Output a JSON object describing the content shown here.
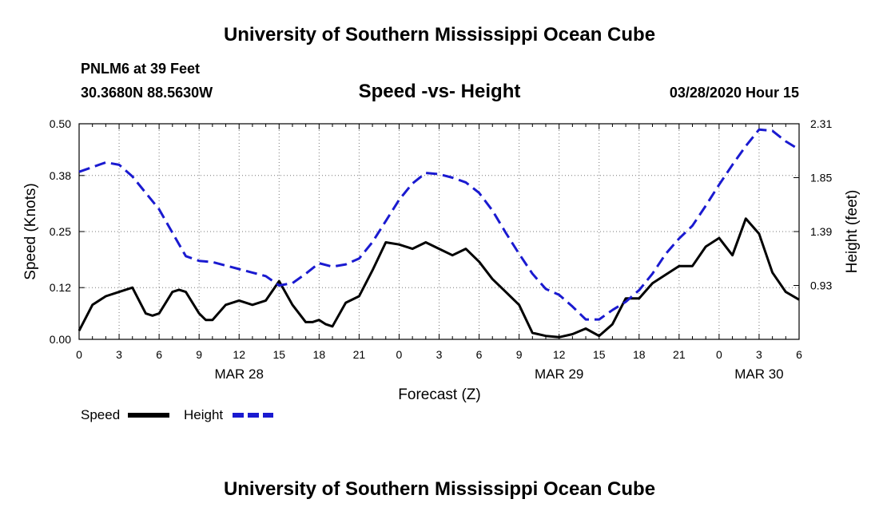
{
  "header": {
    "top_title": "University of Southern Mississippi Ocean Cube",
    "station": "PNLM6 at 39 Feet",
    "coords": "30.3680N 88.5630W",
    "chart_title": "Speed -vs- Height",
    "datetime": "03/28/2020 Hour 15",
    "bottom_title": "University of Southern Mississippi Ocean Cube"
  },
  "colors": {
    "speed": "#000000",
    "height": "#1a1ad0"
  },
  "chart_data": {
    "type": "line",
    "title": "Speed -vs- Height",
    "xlabel": "Forecast (Z)",
    "ylabel_left": "Speed (Knots)",
    "ylabel_right": "Height (feet)",
    "x_range": [
      0,
      54
    ],
    "ylim_left": [
      0,
      0.5
    ],
    "ylim_right": [
      0.47,
      2.31
    ],
    "x_ticks": [
      0,
      3,
      6,
      9,
      12,
      15,
      18,
      21,
      24,
      27,
      30,
      33,
      36,
      39,
      42,
      45,
      48,
      51,
      54
    ],
    "x_tick_labels": [
      "0",
      "3",
      "6",
      "9",
      "12",
      "15",
      "18",
      "21",
      "0",
      "3",
      "6",
      "9",
      "12",
      "15",
      "18",
      "21",
      "0",
      "3",
      "6"
    ],
    "date_labels": [
      {
        "x": 12,
        "label": "MAR 28"
      },
      {
        "x": 36,
        "label": "MAR 29"
      },
      {
        "x": 51,
        "label": "MAR 30"
      }
    ],
    "y_ticks_left": [
      0.0,
      0.12,
      0.25,
      0.38,
      0.5
    ],
    "y_tick_labels_left": [
      "0.00",
      "0.12",
      "0.25",
      "0.38",
      "0.50"
    ],
    "y_ticks_right": [
      0.93,
      1.39,
      1.85,
      2.31
    ],
    "y_tick_labels_right": [
      "0.93",
      "1.39",
      "1.85",
      "2.31"
    ],
    "grid": true,
    "legend": [
      "Speed",
      "Height"
    ],
    "series": [
      {
        "name": "Speed",
        "axis": "left",
        "style": "solid",
        "x": [
          0,
          1,
          2,
          3,
          4,
          5,
          5.5,
          6,
          7,
          7.5,
          8,
          9,
          9.5,
          10,
          11,
          12,
          13,
          14,
          15,
          16,
          17,
          17.5,
          18,
          18.5,
          19,
          20,
          21,
          22,
          23,
          24,
          25,
          26,
          27,
          28,
          29,
          30,
          31,
          32,
          33,
          34,
          35,
          36,
          37,
          38,
          39,
          40,
          41,
          42,
          43,
          44,
          45,
          46,
          47,
          48,
          49,
          50,
          51,
          52,
          53,
          54
        ],
        "values": [
          0.02,
          0.08,
          0.1,
          0.11,
          0.12,
          0.06,
          0.055,
          0.06,
          0.11,
          0.115,
          0.11,
          0.06,
          0.045,
          0.045,
          0.08,
          0.09,
          0.08,
          0.09,
          0.135,
          0.08,
          0.04,
          0.04,
          0.045,
          0.035,
          0.03,
          0.085,
          0.1,
          0.16,
          0.225,
          0.22,
          0.21,
          0.225,
          0.21,
          0.195,
          0.21,
          0.18,
          0.14,
          0.11,
          0.08,
          0.015,
          0.008,
          0.005,
          0.012,
          0.025,
          0.008,
          0.035,
          0.095,
          0.095,
          0.13,
          0.15,
          0.17,
          0.17,
          0.215,
          0.235,
          0.195,
          0.28,
          0.245,
          0.155,
          0.11,
          0.092
        ]
      },
      {
        "name": "Height",
        "axis": "right",
        "style": "dashed",
        "x": [
          0,
          1,
          2,
          3,
          4,
          5,
          6,
          7,
          8,
          9,
          10,
          11,
          12,
          13,
          14,
          15,
          16,
          17,
          18,
          19,
          20,
          21,
          22,
          23,
          24,
          25,
          26,
          27,
          28,
          29,
          30,
          31,
          32,
          33,
          34,
          35,
          36,
          37,
          38,
          39,
          40,
          41,
          42,
          43,
          44,
          45,
          46,
          47,
          48,
          49,
          50,
          51,
          52,
          53,
          54
        ],
        "values": [
          1.9,
          1.94,
          1.98,
          1.96,
          1.86,
          1.72,
          1.58,
          1.38,
          1.18,
          1.14,
          1.13,
          1.1,
          1.07,
          1.04,
          1.01,
          0.93,
          0.95,
          1.03,
          1.12,
          1.09,
          1.11,
          1.16,
          1.3,
          1.48,
          1.66,
          1.8,
          1.89,
          1.88,
          1.85,
          1.81,
          1.72,
          1.57,
          1.38,
          1.2,
          1.03,
          0.9,
          0.85,
          0.75,
          0.64,
          0.64,
          0.72,
          0.79,
          0.89,
          1.03,
          1.2,
          1.33,
          1.44,
          1.61,
          1.79,
          1.96,
          2.12,
          2.26,
          2.25,
          2.16,
          2.09
        ]
      }
    ]
  }
}
